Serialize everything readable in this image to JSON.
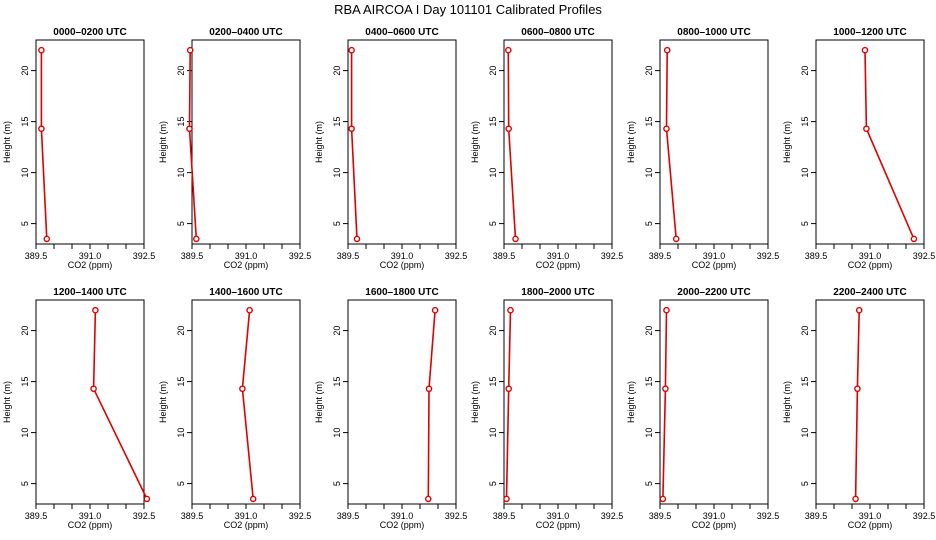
{
  "title": "RBA AIRCOA I  Day 101101  Calibrated Profiles",
  "colors": {
    "line": "#e00000",
    "marker": "#e00000",
    "axis": "#000000",
    "background": "#ffffff"
  },
  "chart_data": {
    "type": "line",
    "xlabel": "CO2 (ppm)",
    "ylabel": "Height (m)",
    "xlim": [
      389.5,
      392.5
    ],
    "ylim": [
      3,
      23
    ],
    "x_ticks": [
      "389.5",
      "391.0",
      "392.5"
    ],
    "x_ticks_minor": [
      390.0,
      390.5,
      391.5,
      392.0
    ],
    "y_ticks": [
      "5",
      "10",
      "15",
      "20"
    ],
    "grid": false,
    "heights": [
      22,
      14.3,
      3.5
    ],
    "panels": [
      {
        "title": "0000–0200 UTC",
        "co2": [
          389.65,
          389.65,
          389.8
        ]
      },
      {
        "title": "0200–0400 UTC",
        "co2": [
          389.45,
          389.43,
          389.62
        ]
      },
      {
        "title": "0400–0600 UTC",
        "co2": [
          389.6,
          389.6,
          389.75
        ]
      },
      {
        "title": "0600–0800 UTC",
        "co2": [
          389.62,
          389.63,
          389.82
        ]
      },
      {
        "title": "0800–1000 UTC",
        "co2": [
          389.7,
          389.68,
          389.95
        ]
      },
      {
        "title": "1000–1200 UTC",
        "co2": [
          390.86,
          390.9,
          392.22
        ]
      },
      {
        "title": "1200–1400 UTC",
        "co2": [
          391.15,
          391.1,
          392.58
        ]
      },
      {
        "title": "1400–1600 UTC",
        "co2": [
          391.1,
          390.9,
          391.2
        ]
      },
      {
        "title": "1600–1800 UTC",
        "co2": [
          391.92,
          391.75,
          391.73
        ]
      },
      {
        "title": "1800–2000 UTC",
        "co2": [
          389.68,
          389.63,
          389.57
        ]
      },
      {
        "title": "2000–2200 UTC",
        "co2": [
          389.68,
          389.65,
          389.58
        ]
      },
      {
        "title": "2200–2400 UTC",
        "co2": [
          390.7,
          390.65,
          390.6
        ]
      }
    ]
  }
}
